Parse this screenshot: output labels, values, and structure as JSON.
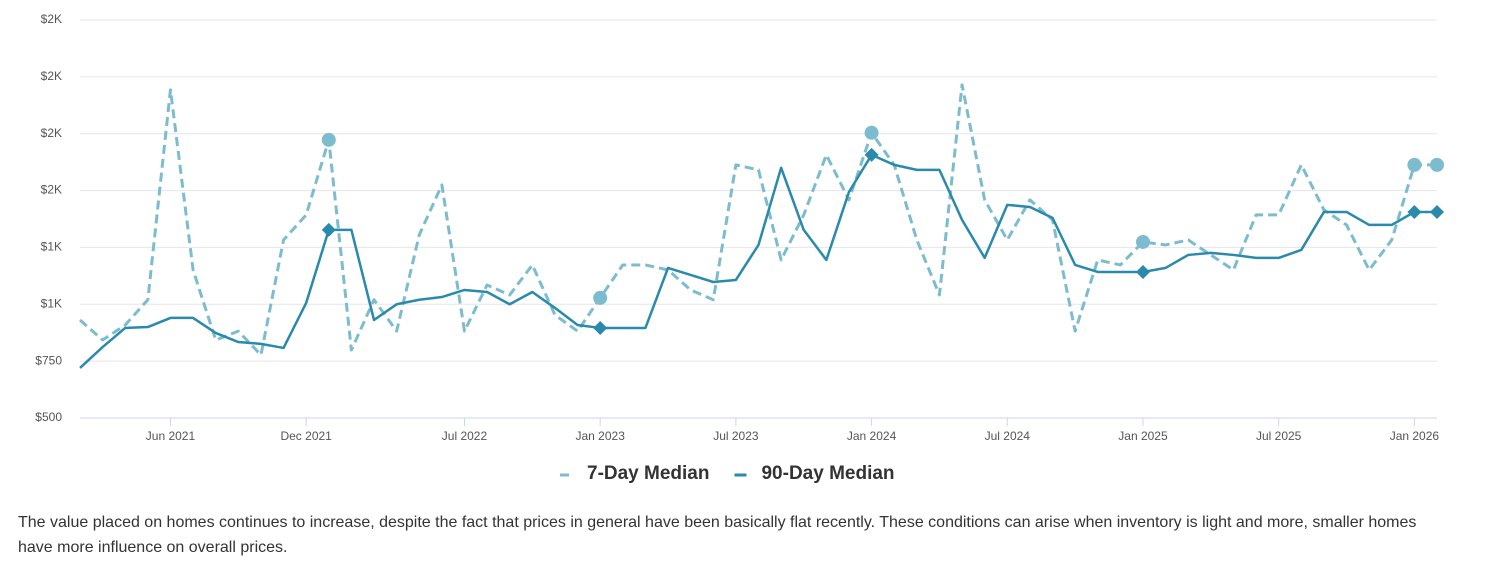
{
  "chart_data": {
    "type": "line",
    "x": [
      "2021-02",
      "2021-03",
      "2021-04",
      "2021-05",
      "2021-06",
      "2021-07",
      "2021-08",
      "2021-09",
      "2021-10",
      "2021-11",
      "2021-12",
      "2022-01",
      "2022-02",
      "2022-03",
      "2022-04",
      "2022-05",
      "2022-06",
      "2022-07",
      "2022-08",
      "2022-09",
      "2022-10",
      "2022-11",
      "2022-12",
      "2023-01",
      "2023-02",
      "2023-03",
      "2023-04",
      "2023-05",
      "2023-06",
      "2023-07",
      "2023-08",
      "2023-09",
      "2023-10",
      "2023-11",
      "2023-12",
      "2024-01",
      "2024-02",
      "2024-03",
      "2024-04",
      "2024-05",
      "2024-06",
      "2024-07",
      "2024-08",
      "2024-09",
      "2024-10",
      "2024-11",
      "2024-12",
      "2025-01",
      "2025-02",
      "2025-03",
      "2025-04",
      "2025-05",
      "2025-06",
      "2025-07",
      "2025-08",
      "2025-09",
      "2025-10",
      "2025-11",
      "2025-12",
      "2026-01",
      "2026-02"
    ],
    "series": [
      {
        "name": "7-Day Median",
        "color": "#7dbccf",
        "dash": true,
        "marker": "circle",
        "values": [
          931,
          843,
          909,
          1020,
          1943,
          1151,
          843,
          882,
          777,
          1283,
          1393,
          1723,
          799,
          1020,
          882,
          1305,
          1525,
          882,
          1085,
          1041,
          1173,
          953,
          882,
          1028,
          1173,
          1173,
          1151,
          1063,
          1020,
          1613,
          1591,
          1195,
          1393,
          1657,
          1459,
          1754,
          1613,
          1283,
          1041,
          1965,
          1459,
          1283,
          1459,
          1371,
          882,
          1195,
          1173,
          1274,
          1261,
          1283,
          1217,
          1151,
          1393,
          1393,
          1613,
          1415,
          1349,
          1151,
          1283,
          1613,
          1613
        ]
      },
      {
        "name": "90-Day Median",
        "color": "#2a8aab",
        "dash": false,
        "marker": "diamond",
        "values": [
          720,
          812,
          896,
          900,
          940,
          940,
          874,
          834,
          826,
          808,
          1006,
          1327,
          1327,
          931,
          1000,
          1020,
          1032,
          1063,
          1054,
          1000,
          1054,
          984,
          909,
          896,
          896,
          896,
          1160,
          1129,
          1098,
          1107,
          1261,
          1600,
          1327,
          1195,
          1494,
          1657,
          1613,
          1591,
          1591,
          1371,
          1204,
          1437,
          1428,
          1380,
          1173,
          1142,
          1142,
          1142,
          1160,
          1217,
          1226,
          1217,
          1204,
          1204,
          1239,
          1406,
          1406,
          1349,
          1349,
          1406,
          1406
        ]
      }
    ],
    "xlim": [
      "2021-02",
      "2026-02"
    ],
    "xticks": [
      {
        "value": "2021-06",
        "label": "Jun 2021"
      },
      {
        "value": "2021-12",
        "label": "Dec 2021"
      },
      {
        "value": "2022-07",
        "label": "Jul 2022"
      },
      {
        "value": "2023-01",
        "label": "Jan 2023"
      },
      {
        "value": "2023-07",
        "label": "Jul 2023"
      },
      {
        "value": "2024-01",
        "label": "Jan 2024"
      },
      {
        "value": "2024-07",
        "label": "Jul 2024"
      },
      {
        "value": "2025-01",
        "label": "Jan 2025"
      },
      {
        "value": "2025-07",
        "label": "Jul 2025"
      },
      {
        "value": "2026-01",
        "label": "Jan 2026"
      }
    ],
    "ylim": [
      500,
      2250
    ],
    "yticks": [
      {
        "value": 500,
        "label": "$500"
      },
      {
        "value": 750,
        "label": "$750"
      },
      {
        "value": 1000,
        "label": "$1K"
      },
      {
        "value": 1250,
        "label": "$1K"
      },
      {
        "value": 1500,
        "label": "$2K"
      },
      {
        "value": 1750,
        "label": "$2K"
      },
      {
        "value": 2000,
        "label": "$2K"
      },
      {
        "value": 2250,
        "label": "$2K"
      }
    ],
    "grid": true,
    "legend": "bottom"
  },
  "description": "The value placed on homes continues to increase, despite the fact that prices in general have been basically flat recently. These conditions can arise when inventory is light and more, smaller homes have more influence on overall prices."
}
